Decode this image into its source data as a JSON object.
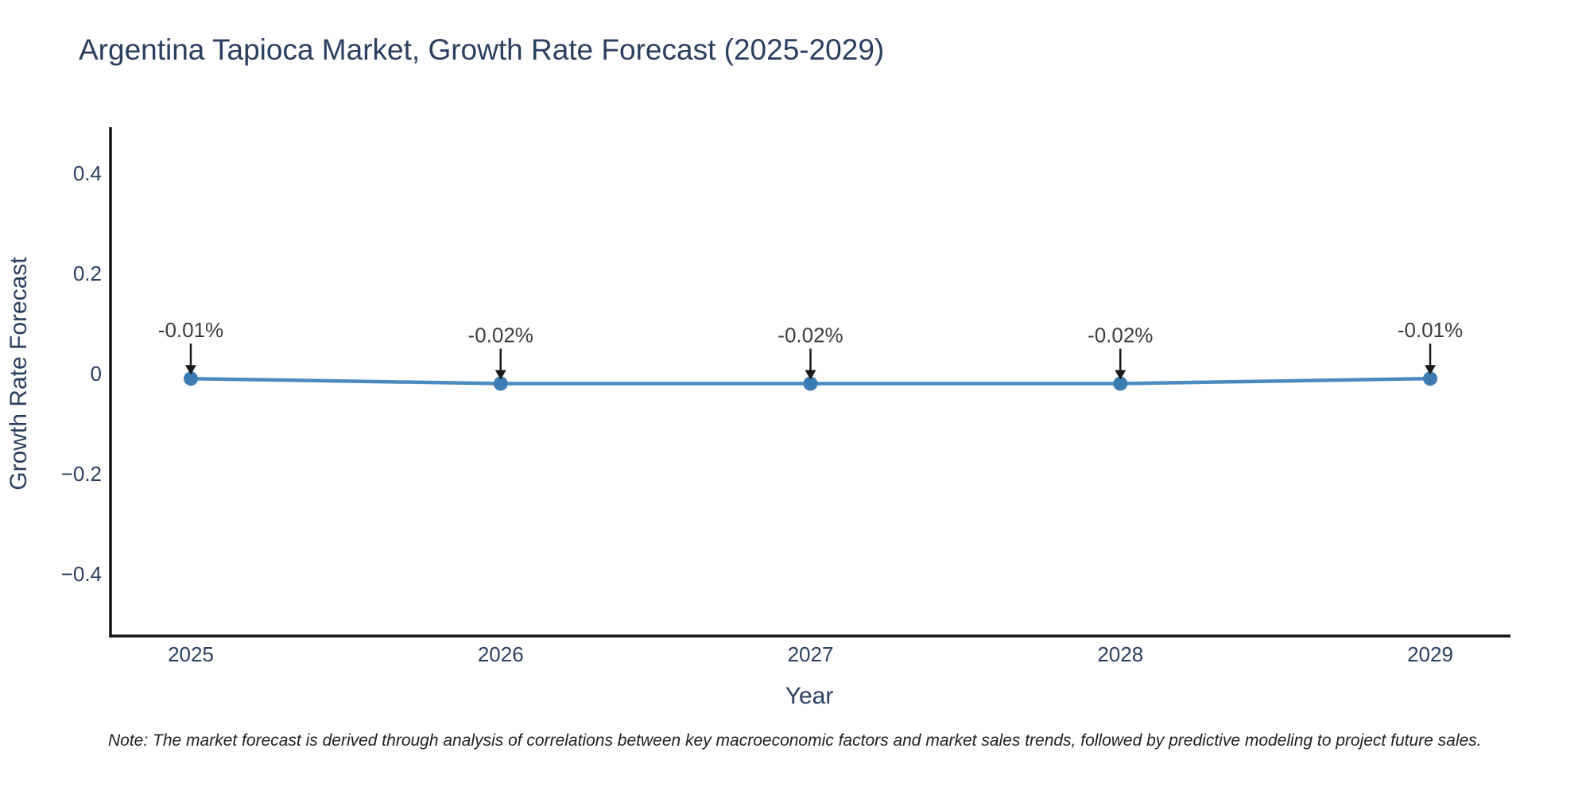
{
  "header": {
    "title": "Argentina Tapioca Market, Growth Rate Forecast (2025-2029)"
  },
  "axes": {
    "x_title": "Year",
    "y_title": "Growth Rate Forecast"
  },
  "footer": {
    "note": "Note: The market forecast is derived through analysis of correlations between key macroeconomic factors and market sales trends, followed by predictive modeling to project future sales."
  },
  "chart_data": {
    "type": "line",
    "title": "Argentina Tapioca Market, Growth Rate Forecast (2025-2029)",
    "xlabel": "Year",
    "ylabel": "Growth Rate Forecast",
    "categories": [
      "2025",
      "2026",
      "2027",
      "2028",
      "2029"
    ],
    "values": [
      -0.01,
      -0.02,
      -0.02,
      -0.02,
      -0.01
    ],
    "point_labels": [
      "-0.01%",
      "-0.02%",
      "-0.02%",
      "-0.02%",
      "-0.01%"
    ],
    "yticks": [
      {
        "value": 0.4,
        "label": "0.4"
      },
      {
        "value": 0.2,
        "label": "0.2"
      },
      {
        "value": 0,
        "label": "0"
      },
      {
        "value": -0.2,
        "label": "−0.2"
      },
      {
        "value": -0.4,
        "label": "−0.4"
      }
    ],
    "ylim": [
      -0.524,
      0.492
    ],
    "grid": false,
    "legend": false,
    "colors": {
      "line": "#4c8bc0",
      "marker": "#3d7cb3",
      "axis": "#111111",
      "tick_text": "#2a3f5f",
      "annotation_text": "#3d3d3d",
      "annotation_arrow": "#1a1a1a"
    }
  }
}
